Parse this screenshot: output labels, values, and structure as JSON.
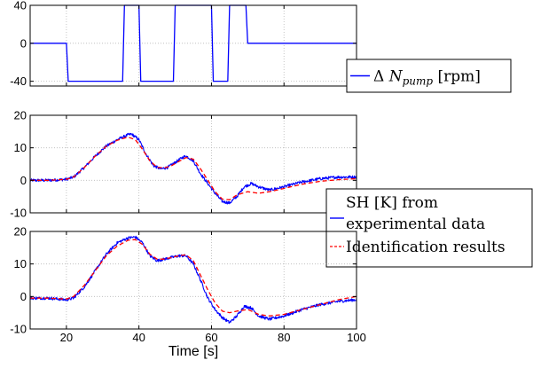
{
  "chart_data": [
    {
      "type": "line",
      "xlim": [
        10,
        100
      ],
      "ylim": [
        -45,
        40
      ],
      "yticks": [
        -40,
        0,
        40
      ],
      "xticks": [
        20,
        40,
        60,
        80,
        100
      ],
      "show_x_tick_labels": false,
      "grid": true,
      "legend": {
        "placement": "right",
        "entries": [
          {
            "prefix": "Δ ",
            "var": "N",
            "subscript": "pump",
            "suffix": " [rpm]",
            "color": "#0000ff",
            "dash": "solid"
          }
        ]
      },
      "series": [
        {
          "name": "Δ N_pump [rpm]",
          "color": "#0000ff",
          "dash": "solid",
          "x": [
            10,
            20,
            20.5,
            35.5,
            36,
            40,
            40.5,
            49.5,
            50,
            59.5,
            60,
            60.5,
            64.5,
            65,
            69.5,
            70,
            100
          ],
          "y": [
            0,
            0,
            -40,
            -40,
            40,
            40,
            -40,
            -40,
            40,
            40,
            40,
            -40,
            -40,
            40,
            40,
            0,
            0
          ]
        }
      ]
    },
    {
      "type": "line",
      "xlim": [
        10,
        100
      ],
      "ylim": [
        -10,
        20
      ],
      "yticks": [
        -10,
        0,
        10,
        20
      ],
      "xticks": [
        20,
        40,
        60,
        80,
        100
      ],
      "show_x_tick_labels": false,
      "grid": true,
      "legend": {
        "placement": "right",
        "entries": [
          {
            "label": "SH [K] from",
            "label2": "experimental data",
            "color": "#0000ff",
            "dash": "solid"
          },
          {
            "label": "Identification results",
            "color": "#ff0000",
            "dash": "dashed"
          }
        ]
      },
      "series": [
        {
          "name": "SH [K] from experimental data",
          "color": "#0000ff",
          "dash": "solid",
          "noise": 0.45,
          "x": [
            10,
            15,
            20,
            22,
            25,
            28,
            31,
            34,
            37,
            38,
            40,
            42,
            44,
            46,
            48,
            50,
            52,
            53,
            55,
            57,
            59,
            61,
            63,
            65,
            67,
            69,
            71,
            73,
            76,
            80,
            85,
            90,
            95,
            100
          ],
          "y": [
            0,
            0,
            0.3,
            1,
            4,
            7.5,
            10.5,
            12.5,
            14,
            14.2,
            12.5,
            8,
            4.5,
            3.5,
            4,
            5.5,
            7,
            7.5,
            6,
            2,
            -1,
            -4,
            -6.5,
            -7,
            -5,
            -2,
            -1,
            -2,
            -3,
            -2,
            -0.5,
            0.5,
            1,
            1
          ]
        },
        {
          "name": "Identification results",
          "color": "#ff0000",
          "dash": "dashed",
          "noise": 0,
          "x": [
            10,
            15,
            20,
            22,
            25,
            28,
            31,
            34,
            37,
            39,
            41,
            43,
            45,
            47,
            49,
            51,
            53,
            55,
            57,
            59,
            61,
            63,
            65,
            67,
            70,
            73,
            76,
            80,
            85,
            90,
            95,
            100
          ],
          "y": [
            0,
            0,
            0.3,
            1,
            4,
            7.5,
            10.5,
            12.3,
            13.3,
            12.5,
            9.5,
            6,
            4,
            3.8,
            4.5,
            5.8,
            7,
            6.5,
            3.5,
            0,
            -3.5,
            -5.8,
            -6,
            -4.5,
            -3.5,
            -4,
            -3.5,
            -2.5,
            -1.2,
            -0.3,
            0.2,
            0.5
          ]
        }
      ]
    },
    {
      "type": "line",
      "xlim": [
        10,
        100
      ],
      "ylim": [
        -10,
        20
      ],
      "yticks": [
        -10,
        0,
        10,
        20
      ],
      "xticks": [
        20,
        40,
        60,
        80,
        100
      ],
      "show_x_tick_labels": true,
      "xlabel": "Time [s]",
      "grid": true,
      "series": [
        {
          "name": "SH [K] from experimental data",
          "color": "#0000ff",
          "dash": "solid",
          "noise": 0.45,
          "x": [
            10,
            15,
            20,
            22,
            25,
            28,
            31,
            34,
            37,
            39,
            41,
            43,
            45,
            47,
            49,
            51,
            53,
            55,
            57,
            59,
            61,
            63,
            65,
            67,
            69,
            71,
            73,
            76,
            80,
            85,
            90,
            95,
            100
          ],
          "y": [
            -0.5,
            -0.5,
            -1,
            -0.5,
            3,
            8,
            13,
            16.5,
            18,
            18.3,
            16.5,
            12.5,
            11,
            11.5,
            12,
            12.5,
            12.5,
            10,
            5,
            -0.5,
            -4,
            -6.5,
            -8,
            -6,
            -3,
            -3.5,
            -6,
            -7,
            -6,
            -4,
            -2.5,
            -1.5,
            -1
          ]
        },
        {
          "name": "Identification results",
          "color": "#ff0000",
          "dash": "dashed",
          "noise": 0,
          "x": [
            10,
            15,
            20,
            22,
            25,
            28,
            31,
            34,
            37,
            39,
            41,
            43,
            45,
            47,
            49,
            51,
            53,
            55,
            57,
            59,
            61,
            63,
            65,
            67,
            70,
            73,
            76,
            80,
            85,
            90,
            95,
            100
          ],
          "y": [
            -0.5,
            -0.5,
            -0.8,
            0,
            3.5,
            8,
            12.5,
            15.5,
            17.3,
            17.5,
            16,
            13,
            11.5,
            11.5,
            12,
            12.5,
            12.8,
            11,
            6.5,
            2,
            -2,
            -4.5,
            -5,
            -4.5,
            -4,
            -5.5,
            -6,
            -5.5,
            -4,
            -2.5,
            -1,
            0
          ]
        }
      ]
    }
  ]
}
